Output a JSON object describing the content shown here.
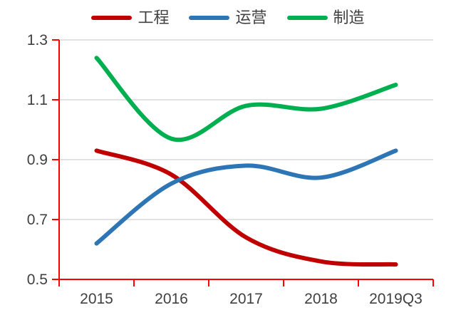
{
  "chart_data": {
    "type": "line",
    "smooth": true,
    "title": "",
    "xlabel": "",
    "ylabel": "",
    "categories": [
      "2015",
      "2016",
      "2017",
      "2018",
      "2019Q3"
    ],
    "series": [
      {
        "key": "engineering",
        "name": "工程",
        "color": "#C00000",
        "values": [
          0.93,
          0.85,
          0.64,
          0.56,
          0.55
        ]
      },
      {
        "key": "operations",
        "name": "运营",
        "color": "#2E75B6",
        "values": [
          0.62,
          0.82,
          0.88,
          0.84,
          0.93
        ]
      },
      {
        "key": "manufacturing",
        "name": "制造",
        "color": "#00B050",
        "values": [
          1.24,
          0.97,
          1.08,
          1.07,
          1.15
        ]
      }
    ],
    "ylim": [
      0.5,
      1.3
    ],
    "y_ticks": [
      0.5,
      0.7,
      0.9,
      1.1,
      1.3
    ],
    "y_tick_labels": [
      "0.5",
      "0.7",
      "0.9",
      "1.1",
      "1.3"
    ],
    "grid": true,
    "legend_position": "top",
    "axis_color": "#FF0000",
    "gridline_color": "#D9D9D9",
    "text_color": "#404040"
  }
}
